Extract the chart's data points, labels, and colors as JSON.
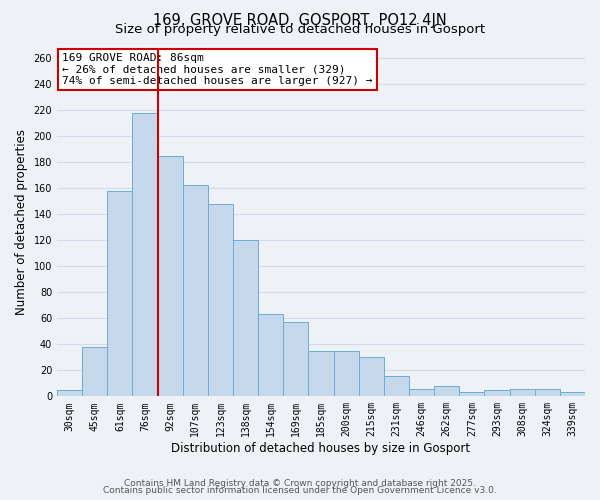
{
  "title": "169, GROVE ROAD, GOSPORT, PO12 4JN",
  "subtitle": "Size of property relative to detached houses in Gosport",
  "xlabel": "Distribution of detached houses by size in Gosport",
  "ylabel": "Number of detached properties",
  "categories": [
    "30sqm",
    "45sqm",
    "61sqm",
    "76sqm",
    "92sqm",
    "107sqm",
    "123sqm",
    "138sqm",
    "154sqm",
    "169sqm",
    "185sqm",
    "200sqm",
    "215sqm",
    "231sqm",
    "246sqm",
    "262sqm",
    "277sqm",
    "293sqm",
    "308sqm",
    "324sqm",
    "339sqm"
  ],
  "values": [
    5,
    38,
    158,
    218,
    185,
    162,
    148,
    120,
    63,
    57,
    35,
    35,
    30,
    16,
    6,
    8,
    3,
    5,
    6,
    6,
    3
  ],
  "bar_color": "#c5d8ec",
  "bar_edge_color": "#6aadd5",
  "grid_color": "#d0dce8",
  "background_color": "#eef2f7",
  "vline_color": "#cc0000",
  "vline_pos": 3.5,
  "annotation_title": "169 GROVE ROAD: 86sqm",
  "annotation_line1": "← 26% of detached houses are smaller (329)",
  "annotation_line2": "74% of semi-detached houses are larger (927) →",
  "annotation_box_facecolor": "#ffffff",
  "annotation_box_edgecolor": "#cc0000",
  "ylim": [
    0,
    268
  ],
  "yticks": [
    0,
    20,
    40,
    60,
    80,
    100,
    120,
    140,
    160,
    180,
    200,
    220,
    240,
    260
  ],
  "footer1": "Contains HM Land Registry data © Crown copyright and database right 2025.",
  "footer2": "Contains public sector information licensed under the Open Government Licence v3.0.",
  "title_fontsize": 10.5,
  "subtitle_fontsize": 9.5,
  "tick_fontsize": 7,
  "axis_label_fontsize": 8.5,
  "footer_fontsize": 6.5,
  "annotation_fontsize": 8
}
